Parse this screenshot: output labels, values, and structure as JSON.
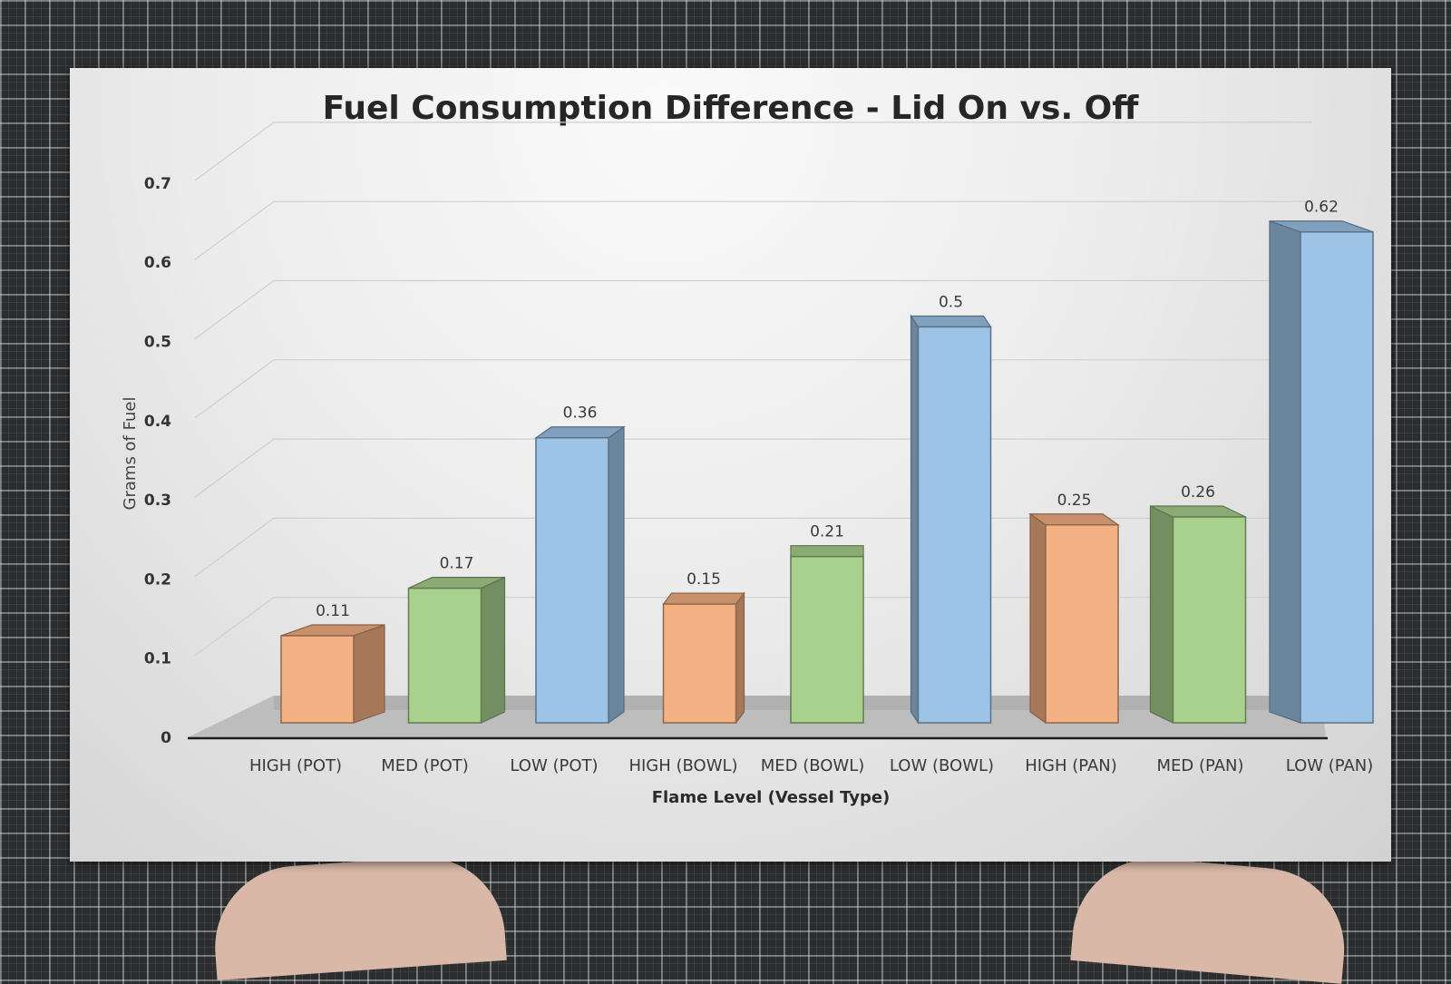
{
  "chart_data": {
    "type": "bar",
    "title": "Fuel Consumption Difference - Lid On vs. Off",
    "xlabel": "Flame Level (Vessel Type)",
    "ylabel": "Grams of Fuel",
    "ylim": [
      0,
      0.7
    ],
    "yticks": [
      "0",
      "0.1",
      "0.2",
      "0.3",
      "0.4",
      "0.5",
      "0.6",
      "0.7"
    ],
    "categories": [
      "HIGH (POT)",
      "MED (POT)",
      "LOW (POT)",
      "HIGH (BOWL)",
      "MED (BOWL)",
      "LOW (BOWL)",
      "HIGH (PAN)",
      "MED (PAN)",
      "LOW (PAN)"
    ],
    "values": [
      0.11,
      0.17,
      0.36,
      0.15,
      0.21,
      0.5,
      0.25,
      0.26,
      0.62
    ],
    "data_labels": [
      "0.11",
      "0.17",
      "0.36",
      "0.15",
      "0.21",
      "0.5",
      "0.25",
      "0.26",
      "0.62"
    ],
    "grid": true,
    "style": "3d-column",
    "colors": {
      "HIGH": "#f4b183",
      "MED": "#a9d18e",
      "LOW": "#9dc3e6"
    }
  }
}
